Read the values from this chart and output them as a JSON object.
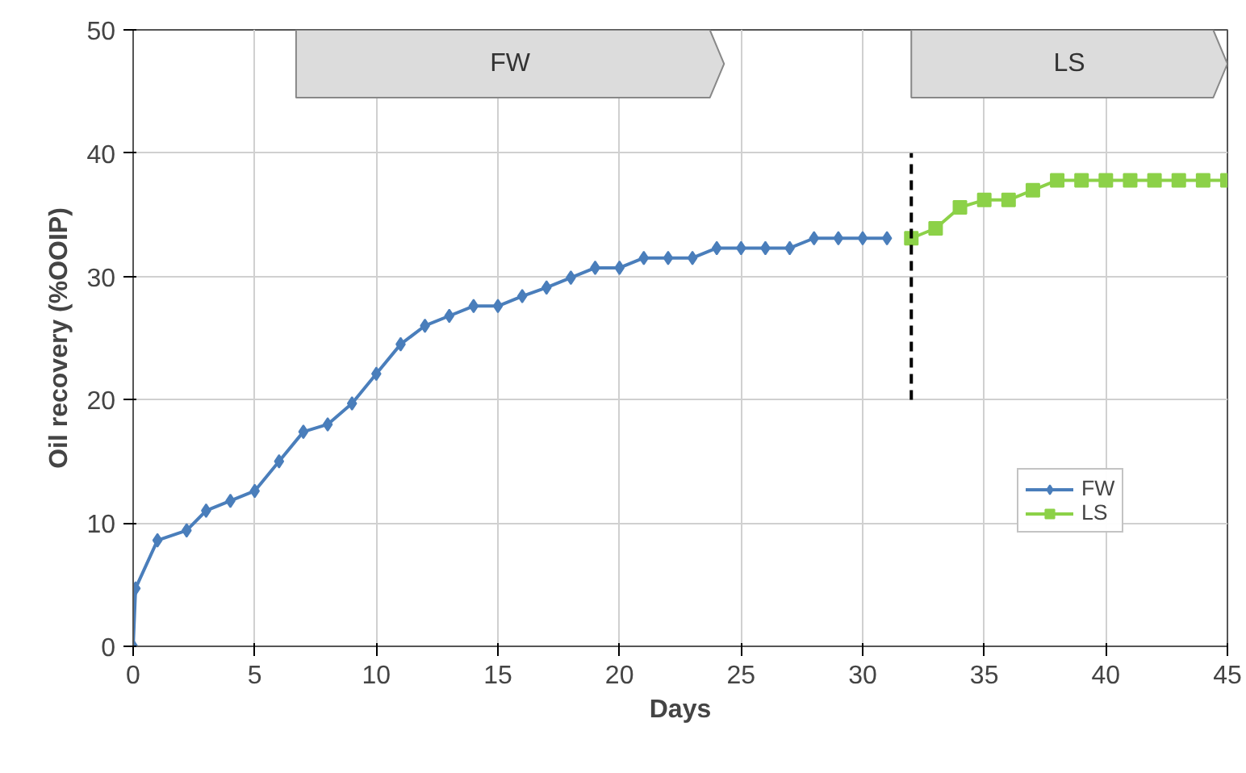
{
  "chart_data": {
    "type": "line",
    "xlabel": "Days",
    "ylabel": "Oil recovery (%OOIP)",
    "xlim": [
      0,
      45
    ],
    "xticks": [
      0,
      5,
      10,
      15,
      20,
      25,
      30,
      35,
      40,
      45
    ],
    "ylim": [
      0,
      50
    ],
    "yticks": [
      0,
      10,
      20,
      30,
      40,
      50
    ],
    "grid": true,
    "legend": "right",
    "line_style": "solid",
    "series": [
      {
        "name": "FW",
        "color": "#4a7ebb",
        "marker": "diamond",
        "x": [
          0,
          0.1,
          1,
          2.2,
          3,
          4,
          5,
          6,
          7,
          8,
          9,
          10,
          11,
          12,
          13,
          14,
          15,
          16,
          17,
          18,
          19,
          20,
          21,
          22,
          23,
          24,
          25,
          26,
          27,
          28,
          29,
          30,
          31
        ],
        "values": [
          0,
          4.7,
          8.6,
          9.4,
          11,
          11.8,
          12.6,
          15,
          17.4,
          18,
          19.7,
          22.1,
          24.5,
          26,
          26.8,
          27.6,
          27.6,
          28.4,
          29.1,
          29.9,
          30.7,
          30.7,
          31.5,
          31.5,
          31.5,
          32.3,
          32.3,
          32.3,
          32.3,
          33.1,
          33.1,
          33.1,
          33.1
        ]
      },
      {
        "name": "LS",
        "color": "#8cd148",
        "marker": "square",
        "x": [
          32,
          33,
          34,
          35,
          36,
          37,
          38,
          39,
          40,
          41,
          42,
          43,
          44,
          45
        ],
        "values": [
          33.1,
          33.9,
          35.6,
          36.2,
          36.2,
          37,
          37.8,
          37.8,
          37.8,
          37.8,
          37.8,
          37.8,
          37.8,
          37.8
        ]
      },
      {
        "color": "#000000",
        "marker": "none",
        "line_style": "dashed",
        "x": [
          32,
          32
        ],
        "values": [
          20,
          40
        ]
      }
    ],
    "bands": [
      {
        "axis": "x",
        "from": 6.7,
        "to": 24.3,
        "label": "FW",
        "color": "#dcdcdc"
      },
      {
        "axis": "x",
        "from": 32,
        "to": 45,
        "label": "LS",
        "color": "#dcdcdc"
      }
    ]
  }
}
